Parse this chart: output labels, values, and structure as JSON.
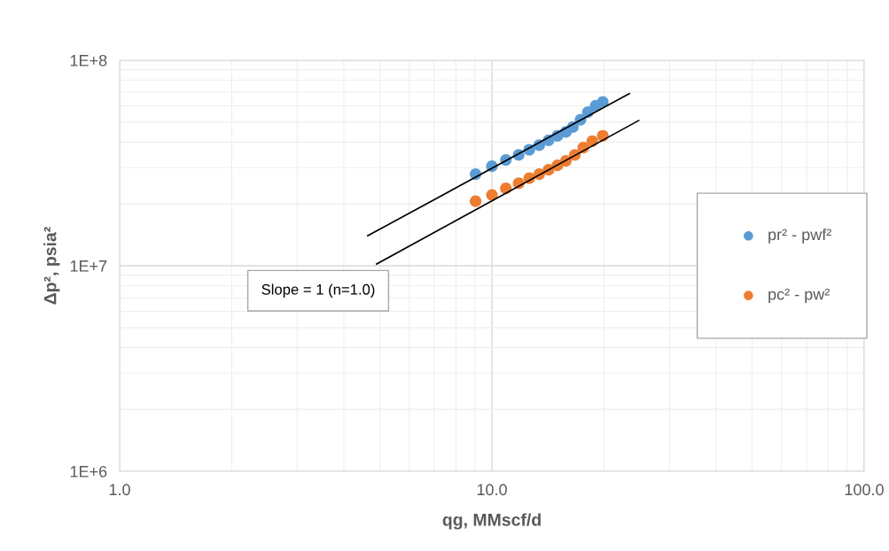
{
  "chart_data": {
    "type": "scatter",
    "xlabel": "qg, MMscf/d",
    "ylabel": "Δp², psia²",
    "log": "xy",
    "grid": true,
    "legend": "right",
    "marker": "circle",
    "xlim": [
      1,
      100
    ],
    "xticks": [
      {
        "value": 1,
        "label": "1.0"
      },
      {
        "value": 10,
        "label": "10.0"
      },
      {
        "value": 100,
        "label": "100.0"
      }
    ],
    "ylim": [
      1000000,
      100000000
    ],
    "yticks": [
      {
        "value": 1000000,
        "label": "1E+6"
      },
      {
        "value": 10000000,
        "label": "1E+7"
      },
      {
        "value": 100000000,
        "label": "1E+8"
      }
    ],
    "annotations": [
      "Slope = 1 (n=1.0)"
    ],
    "series": [
      {
        "name": "pr² - pwf²",
        "color": "#5b9bd5",
        "x": [
          9.04,
          10.0,
          10.9,
          11.8,
          12.6,
          13.4,
          14.2,
          15.0,
          15.8,
          16.5,
          17.3,
          18.1,
          19.0,
          19.85
        ],
        "values": [
          27900000,
          30500000,
          32700000,
          34600000,
          36700000,
          38600000,
          40800000,
          42900000,
          44800000,
          47300000,
          51400000,
          55900000,
          60100000,
          62700000
        ]
      },
      {
        "name": "pc² - pw²",
        "color": "#ed7d31",
        "x": [
          9.04,
          10.0,
          10.9,
          11.8,
          12.6,
          13.4,
          14.2,
          15.0,
          15.8,
          16.7,
          17.6,
          18.6,
          19.85
        ],
        "values": [
          20600000,
          22100000,
          23800000,
          25200000,
          26700000,
          27900000,
          29300000,
          30800000,
          32400000,
          34600000,
          37600000,
          40400000,
          42900000
        ]
      },
      {
        "type": "line",
        "color": "#000000",
        "marker": "none",
        "x": [
          4.64,
          23.4
        ],
        "values": [
          14000000,
          68800000
        ]
      },
      {
        "type": "line",
        "color": "#000000",
        "marker": "none",
        "x": [
          4.9,
          24.8
        ],
        "values": [
          10200000,
          50900000
        ]
      }
    ]
  }
}
